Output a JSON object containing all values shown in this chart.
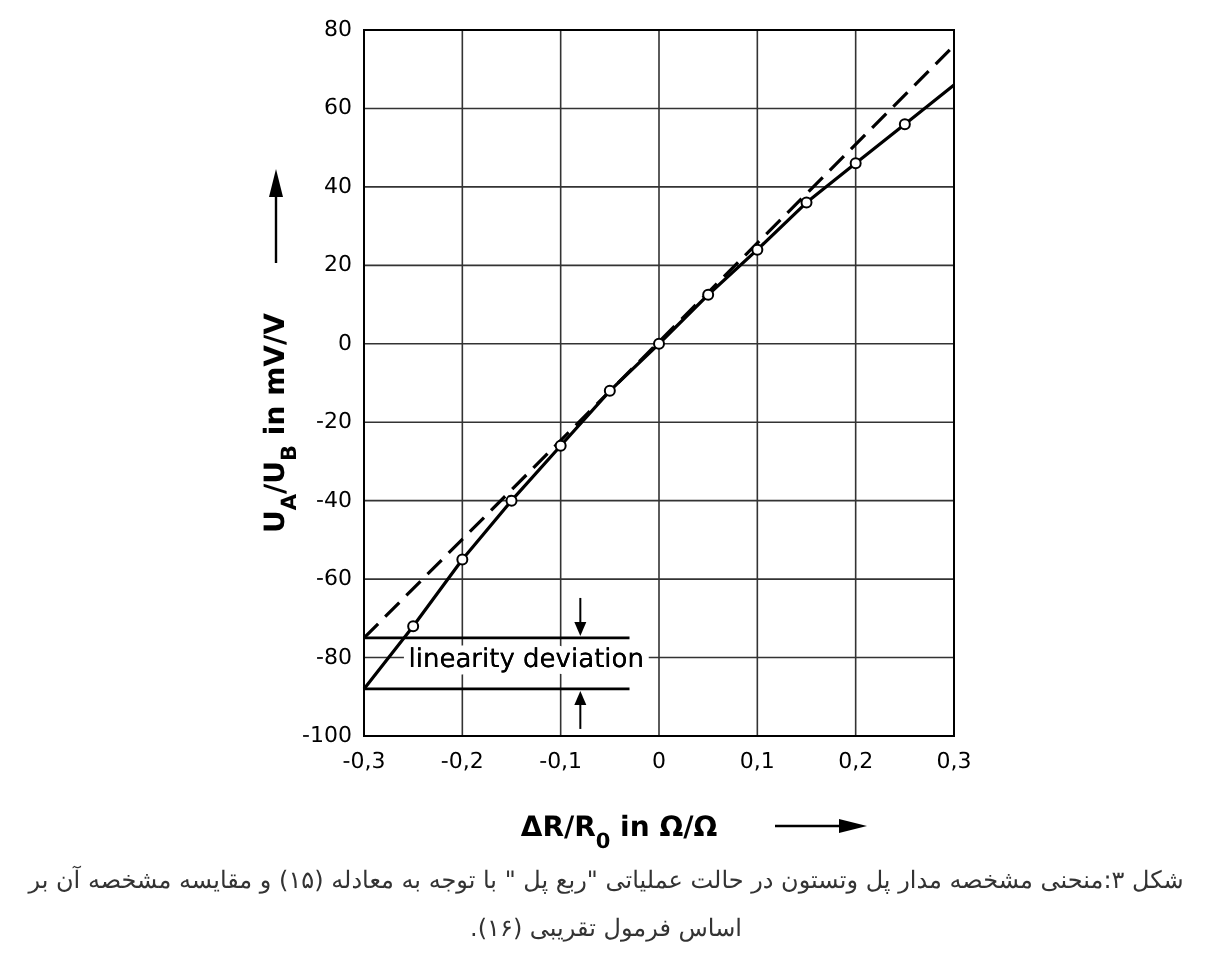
{
  "chart_data": {
    "type": "line",
    "xlabel": "ΔR/R$_{0}$ in Ω/Ω",
    "ylabel": "U$_{A}$/U$_{B}$ in mV/V",
    "xlim": [
      -0.3,
      0.3
    ],
    "xticks": [
      {
        "value": -0.3,
        "label": "-0,3"
      },
      {
        "value": -0.2,
        "label": "-0,2"
      },
      {
        "value": -0.1,
        "label": "-0,1"
      },
      0,
      {
        "value": 0.1,
        "label": "0,1"
      },
      {
        "value": 0.2,
        "label": "0,2"
      },
      {
        "value": 0.3,
        "label": "0,3"
      }
    ],
    "ylim": [
      -100,
      80
    ],
    "yticks": [
      -100,
      -80,
      -60,
      -40,
      -20,
      0,
      20,
      40,
      60,
      80
    ],
    "grid": true,
    "series": [
      {
        "color": "#000000",
        "line_style": "dashed",
        "marker": "none",
        "x": [
          -0.3,
          0.3
        ],
        "values": [
          -75,
          76
        ]
      },
      {
        "color": "#000000",
        "line_style": "solid",
        "marker": "none",
        "x": [
          -0.3,
          -0.25,
          -0.2,
          -0.15,
          -0.1,
          -0.05,
          0,
          0.05,
          0.1,
          0.15,
          0.2,
          0.25,
          0.3
        ],
        "values": [
          -88,
          -72,
          -55,
          -40,
          -26,
          -12,
          0,
          12.5,
          24,
          36,
          46,
          56,
          66
        ]
      },
      {
        "type": "scatter",
        "color": "#000000",
        "marker": "circle",
        "x": [
          -0.25,
          -0.2,
          -0.15,
          -0.1,
          -0.05,
          0,
          0.05,
          0.1,
          0.15,
          0.2,
          0.25
        ],
        "values": [
          -72,
          -55,
          -40,
          -26,
          -12,
          0,
          12.5,
          24,
          36,
          46,
          56
        ]
      }
    ],
    "ref_lines": [
      {
        "axis": "y",
        "value": -75
      },
      {
        "axis": "y",
        "value": -88
      }
    ],
    "annotations": [
      "linearity deviation",
      "شکل ۳:منحنی  مشخصه مدار پل وتستون در حالت عملیاتی \"ربع پل \" با توجه به معادله (۱۵) و مقایسه مشخصه آن بر اساس فرمول تقریبی (۱۶)."
    ]
  }
}
